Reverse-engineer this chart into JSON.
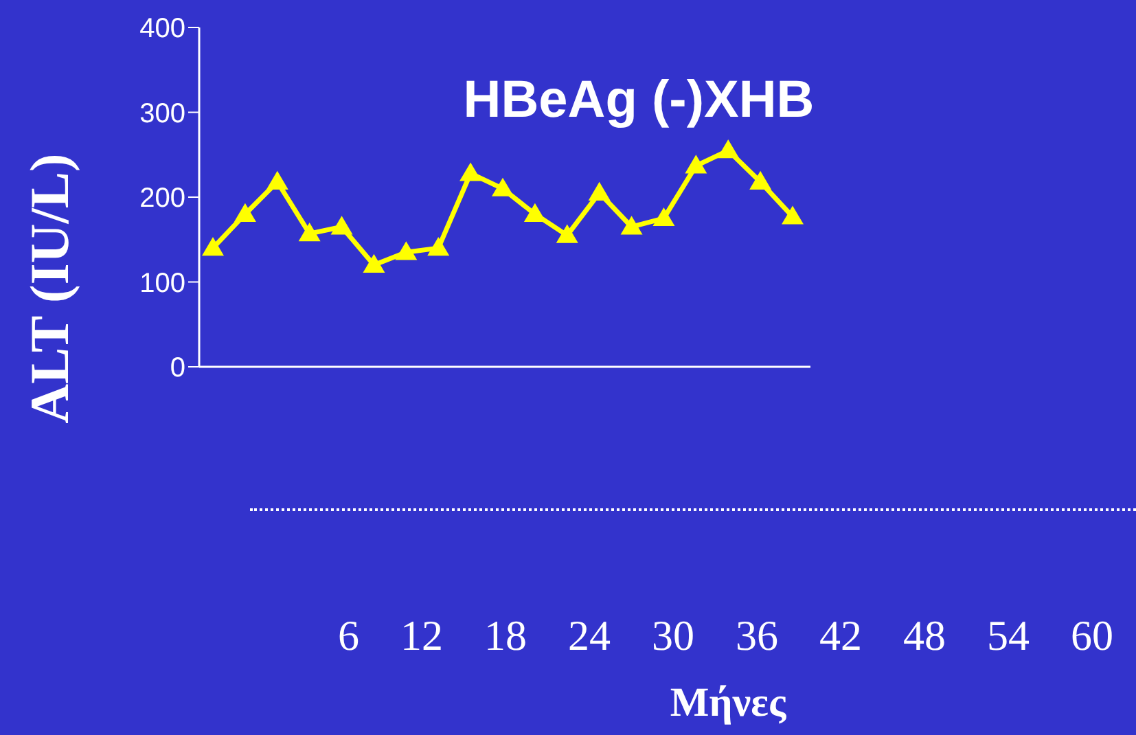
{
  "chart_data": {
    "type": "line",
    "title": "HBeAg (-)XHB",
    "ylabel": "ALT (IU/L)",
    "categories": [
      null,
      null,
      null,
      null,
      null,
      null,
      null,
      null,
      null,
      null,
      null,
      null,
      null,
      null,
      null,
      null,
      null,
      null,
      null
    ],
    "series": [
      {
        "color": "#ffff00",
        "values": [
          140,
          180,
          218,
          157,
          165,
          120,
          135,
          140,
          228,
          210,
          180,
          155,
          205,
          165,
          175,
          237,
          255,
          218,
          177
        ]
      }
    ],
    "ylim": [
      0,
      400
    ],
    "yticks": [
      0,
      100,
      200,
      300,
      400
    ],
    "marker": "triangle",
    "line_style": "solid",
    "annotations": [
      "6",
      "12",
      "18",
      "24",
      "30",
      "36",
      "42",
      "48",
      "54",
      "60",
      "Μήνες"
    ]
  }
}
